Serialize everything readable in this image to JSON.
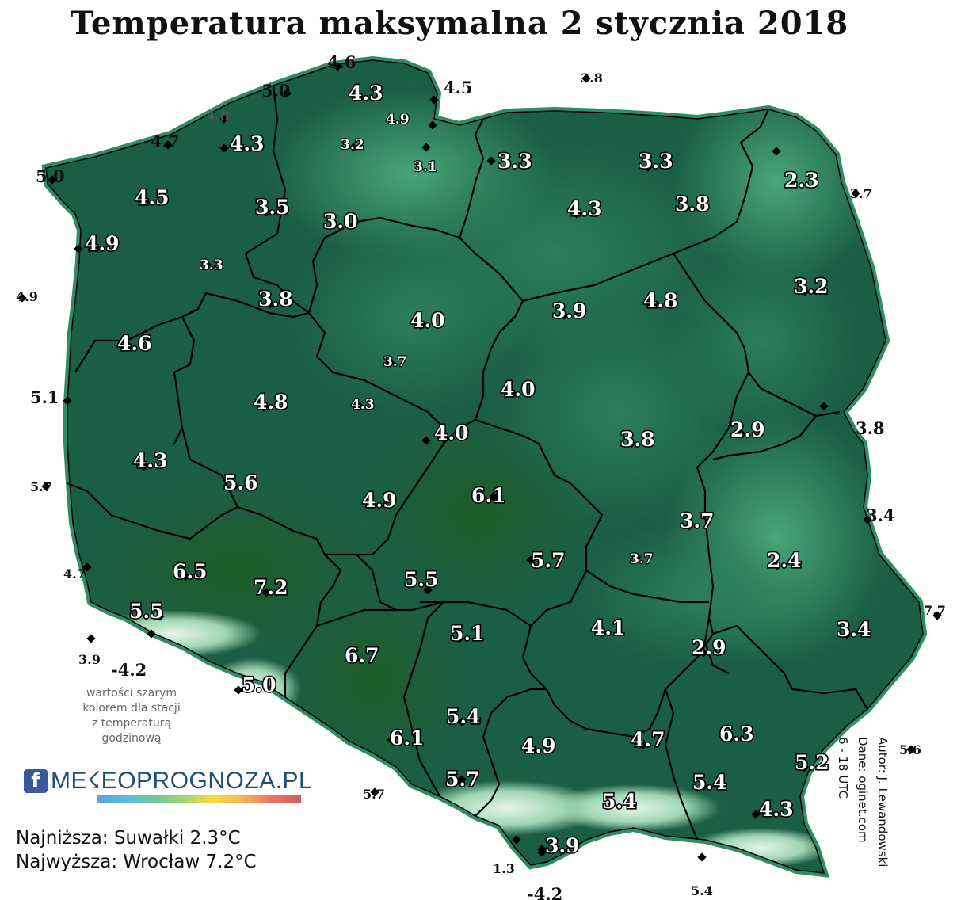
{
  "title": "Temperatura maksymalna 2 stycznia 2018",
  "colors": {
    "sea_background": "#ffffff",
    "country_fill": "#1b5e46",
    "lowland_dark": "#174f3c",
    "warm_region": "#1d5a2c",
    "cool_region": "#3b9a6c",
    "mountains": "#d8eedc",
    "region_borders": "#000000"
  },
  "note": {
    "line1": "wartości szarym",
    "line2": "kolorem dla stacji",
    "line3": "z temperaturą",
    "line4": "godzinową"
  },
  "logo": {
    "icon": "facebook-icon",
    "icon_glyph": "f",
    "text": "ME☇EOPROGNOZA.PL"
  },
  "extremes": {
    "lowest": "Najniższa: Suwałki  2.3°C",
    "highest": "Najwyższa: Wrocław 7.2°C"
  },
  "credits": {
    "author": "Autor: J. Lewandowski",
    "data": "Dane: oginet.com",
    "period": "6 - 18 UTC"
  },
  "stations": [
    {
      "value": "4.6",
      "style": "outside"
    },
    {
      "value": "5.0",
      "style": "outside"
    },
    {
      "value": "4.3",
      "style": "big"
    },
    {
      "value": "4.5",
      "style": "outside"
    },
    {
      "value": "3.8",
      "style": "outside-small"
    },
    {
      "value": "4.8",
      "style": "gray"
    },
    {
      "value": "4.9",
      "style": "small"
    },
    {
      "value": "4.7",
      "style": "outside"
    },
    {
      "value": "4.3",
      "style": "big"
    },
    {
      "value": "3.2",
      "style": "small"
    },
    {
      "value": "3.1",
      "style": "small"
    },
    {
      "value": "3.3",
      "style": "big"
    },
    {
      "value": "3.3",
      "style": "big"
    },
    {
      "value": "5.0",
      "style": "outside"
    },
    {
      "value": "2.3",
      "style": "big"
    },
    {
      "value": "3.7",
      "style": "outside-small"
    },
    {
      "value": "4.5",
      "style": "big"
    },
    {
      "value": "3.5",
      "style": "big"
    },
    {
      "value": "3.0",
      "style": "big"
    },
    {
      "value": "4.3",
      "style": "big"
    },
    {
      "value": "3.8",
      "style": "big"
    },
    {
      "value": "4.9",
      "style": "big"
    },
    {
      "value": "3.3",
      "style": "small"
    },
    {
      "value": "3.2",
      "style": "big"
    },
    {
      "value": "4.9",
      "style": "outside-small"
    },
    {
      "value": "3.8",
      "style": "big"
    },
    {
      "value": "4.0",
      "style": "big"
    },
    {
      "value": "3.9",
      "style": "big"
    },
    {
      "value": "4.8",
      "style": "big"
    },
    {
      "value": "4.6",
      "style": "big"
    },
    {
      "value": "3.7",
      "style": "small"
    },
    {
      "value": "5.1",
      "style": "outside"
    },
    {
      "value": "4.8",
      "style": "big"
    },
    {
      "value": "4.3",
      "style": "small"
    },
    {
      "value": "4.0",
      "style": "big"
    },
    {
      "value": "4.3",
      "style": "big"
    },
    {
      "value": "3.8",
      "style": "big"
    },
    {
      "value": "2.9",
      "style": "big"
    },
    {
      "value": "3.8",
      "style": "outside"
    },
    {
      "value": "4.0",
      "style": "big"
    },
    {
      "value": "5.7",
      "style": "outside-small"
    },
    {
      "value": "5.6",
      "style": "big"
    },
    {
      "value": "4.9",
      "style": "big"
    },
    {
      "value": "6.1",
      "style": "big"
    },
    {
      "value": "3.7",
      "style": "big"
    },
    {
      "value": "3.4",
      "style": "outside"
    },
    {
      "value": "5.7",
      "style": "big"
    },
    {
      "value": "3.7",
      "style": "small"
    },
    {
      "value": "2.4",
      "style": "big"
    },
    {
      "value": "4.7",
      "style": "outside-small"
    },
    {
      "value": "6.5",
      "style": "big"
    },
    {
      "value": "7.2",
      "style": "big"
    },
    {
      "value": "5.5",
      "style": "big"
    },
    {
      "value": "5.5",
      "style": "big"
    },
    {
      "value": "7.7",
      "style": "outside-small"
    },
    {
      "value": "5.1",
      "style": "big"
    },
    {
      "value": "4.1",
      "style": "big"
    },
    {
      "value": "3.4",
      "style": "big"
    },
    {
      "value": "3.9",
      "style": "outside-small"
    },
    {
      "value": "-4.2",
      "style": "outside"
    },
    {
      "value": "6.7",
      "style": "big"
    },
    {
      "value": "2.9",
      "style": "big"
    },
    {
      "value": "5.0",
      "style": "big"
    },
    {
      "value": "5.4",
      "style": "big"
    },
    {
      "value": "5.6",
      "style": "outside-small"
    },
    {
      "value": "6.1",
      "style": "big"
    },
    {
      "value": "4.9",
      "style": "big"
    },
    {
      "value": "4.7",
      "style": "big"
    },
    {
      "value": "6.3",
      "style": "big"
    },
    {
      "value": "5.2",
      "style": "big"
    },
    {
      "value": "5.7",
      "style": "outside-small"
    },
    {
      "value": "5.7",
      "style": "big"
    },
    {
      "value": "5.4",
      "style": "big"
    },
    {
      "value": "5.4",
      "style": "big"
    },
    {
      "value": "4.3",
      "style": "big"
    },
    {
      "value": "3.9",
      "style": "big"
    },
    {
      "value": "1.3",
      "style": "outside-small"
    },
    {
      "value": "5.4",
      "style": "outside-small"
    },
    {
      "value": "-4.2",
      "style": "outside"
    }
  ]
}
